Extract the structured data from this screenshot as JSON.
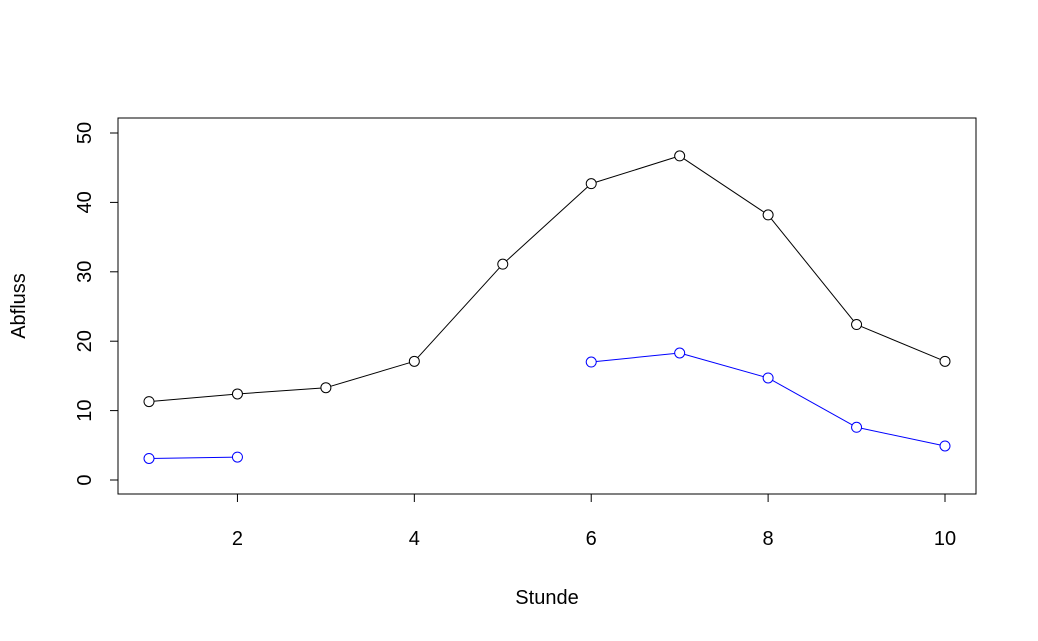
{
  "chart_data": {
    "type": "line",
    "title": "",
    "xlabel": "Stunde",
    "ylabel": "Abfluss",
    "xlim": [
      1,
      10
    ],
    "ylim": [
      0,
      50
    ],
    "x_ticks": [
      2,
      4,
      6,
      8,
      10
    ],
    "x_tick_labels": [
      "2",
      "4",
      "6",
      "8",
      "10"
    ],
    "y_ticks": [
      0,
      10,
      20,
      30,
      40,
      50
    ],
    "y_tick_labels": [
      "0",
      "10",
      "20",
      "30",
      "40",
      "50"
    ],
    "grid": false,
    "legend": "none",
    "x": [
      1,
      2,
      3,
      4,
      5,
      6,
      7,
      8,
      9,
      10
    ],
    "series": [
      {
        "color": "#000000",
        "marker": "open-circle",
        "values": [
          11.3,
          12.4,
          13.3,
          17.1,
          31.1,
          42.7,
          46.7,
          38.2,
          22.4,
          17.1
        ]
      },
      {
        "color": "#0000ff",
        "marker": "open-circle",
        "values": [
          3.1,
          3.3,
          null,
          null,
          null,
          17.0,
          18.3,
          14.7,
          7.6,
          4.9
        ]
      }
    ]
  }
}
